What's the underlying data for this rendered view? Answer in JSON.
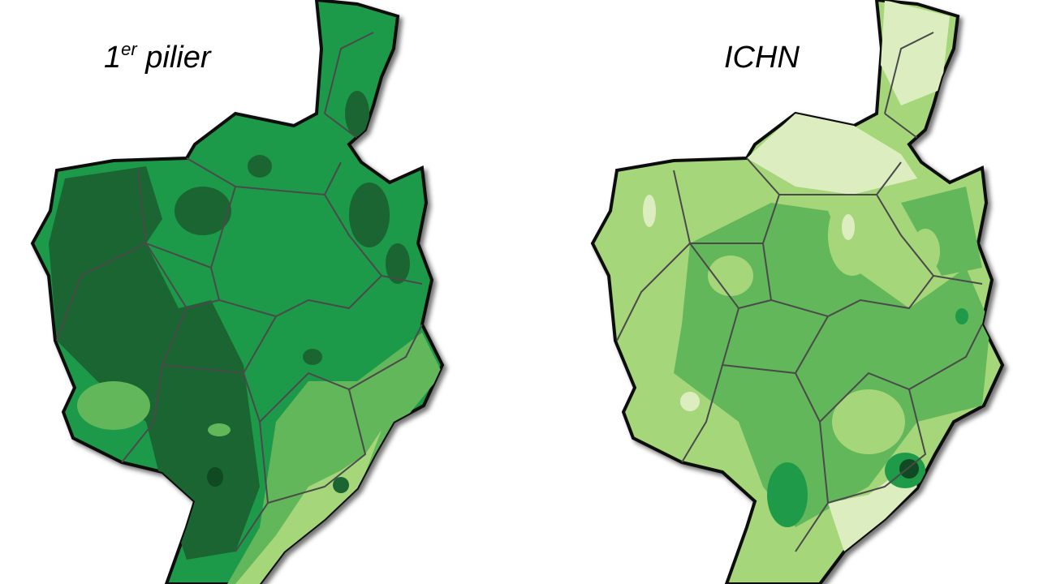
{
  "maps": [
    {
      "title_main": "1",
      "title_sup": "er",
      "title_rest": " pilier"
    },
    {
      "title_main": "ICHN"
    }
  ],
  "colors": {
    "darkest": "#0f4a22",
    "dark": "#1a6531",
    "medium": "#1f9a48",
    "mid_light": "#62b75a",
    "light": "#a6d67a",
    "pale": "#dcedbf",
    "border": "#111111",
    "inner_border": "#4a4a4a"
  }
}
